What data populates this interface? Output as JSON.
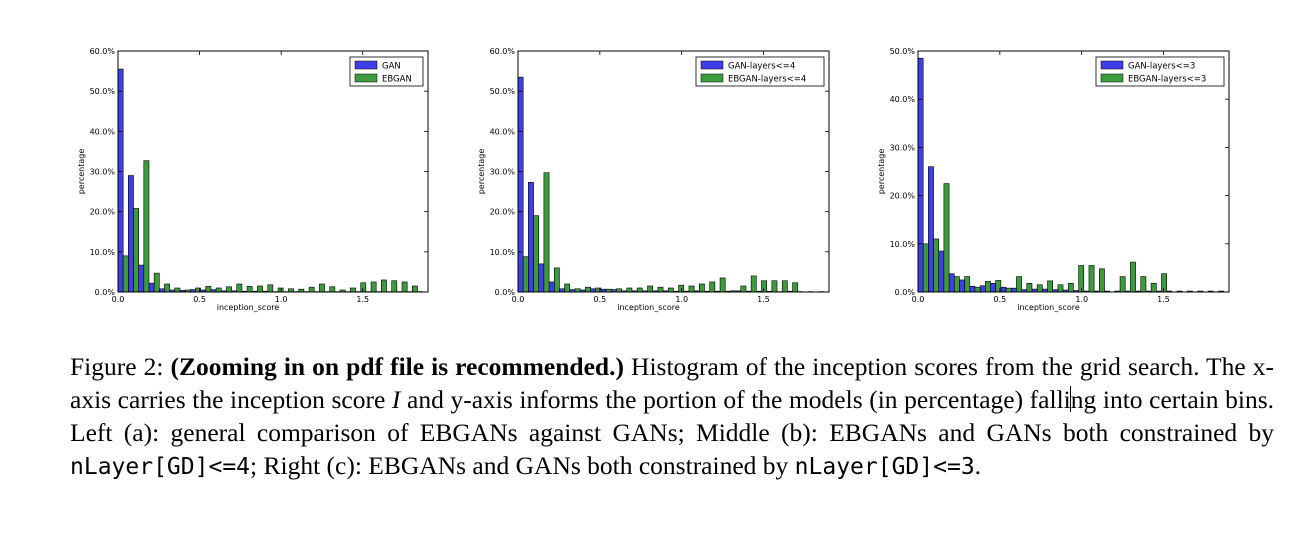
{
  "colors": {
    "gan": "#3f3fe8",
    "ebgan": "#3d9a3d"
  },
  "chart_data": [
    {
      "type": "bar",
      "xlabel": "inception_score",
      "ylabel": "percentage",
      "ylim": [
        0,
        60
      ],
      "xlim": [
        0,
        1.9
      ],
      "yticks": [
        "0.0%",
        "10.0%",
        "20.0%",
        "30.0%",
        "40.0%",
        "50.0%",
        "60.0%"
      ],
      "xticks": [
        "0.0",
        "0.5",
        "1.0",
        "1.5"
      ],
      "legend_position": "top-right",
      "bin_width": 0.0633,
      "series": [
        {
          "name": "GAN",
          "values": [
            55.5,
            29.0,
            6.7,
            2.2,
            0.8,
            0.5,
            0.4,
            0.6,
            0.5,
            0.6,
            0.3,
            0.3,
            0.2,
            0.2,
            0.2,
            0.1,
            0.1,
            0.1,
            0.1,
            0.1,
            0.1,
            0.1,
            0.1,
            0.1,
            0.1,
            0.1,
            0.1,
            0.1,
            0.1,
            0.1
          ]
        },
        {
          "name": "EBGAN",
          "values": [
            9.0,
            20.8,
            32.7,
            4.7,
            2.0,
            1.0,
            0.5,
            1.0,
            1.4,
            1.0,
            1.3,
            2.0,
            1.4,
            1.5,
            1.8,
            1.0,
            0.8,
            0.7,
            1.2,
            2.0,
            1.3,
            0.5,
            1.0,
            2.3,
            2.5,
            3.0,
            2.8,
            2.5,
            1.5,
            0.0
          ]
        }
      ]
    },
    {
      "type": "bar",
      "xlabel": "inception_score",
      "ylabel": "percentage",
      "ylim": [
        0,
        60
      ],
      "xlim": [
        0,
        1.9
      ],
      "yticks": [
        "0.0%",
        "10.0%",
        "20.0%",
        "30.0%",
        "40.0%",
        "50.0%",
        "60.0%"
      ],
      "xticks": [
        "0.0",
        "0.5",
        "1.0",
        "1.5"
      ],
      "legend_position": "top-right",
      "bin_width": 0.0633,
      "series": [
        {
          "name": "GAN-layers<=4",
          "values": [
            53.5,
            27.3,
            7.0,
            2.5,
            0.8,
            0.6,
            0.5,
            0.8,
            0.7,
            0.6,
            0.3,
            0.3,
            0.3,
            0.3,
            0.3,
            0.2,
            0.2,
            0.3,
            0.2,
            0.2,
            0.2,
            0.3,
            0.2,
            0.2,
            0.2,
            0.1,
            0.2,
            0.1,
            0.1,
            0.1
          ]
        },
        {
          "name": "EBGAN-layers<=4",
          "values": [
            8.8,
            19.0,
            29.7,
            6.0,
            2.0,
            0.8,
            1.2,
            1.0,
            0.7,
            0.8,
            1.0,
            1.0,
            1.5,
            1.2,
            1.0,
            1.7,
            1.5,
            2.0,
            2.5,
            3.5,
            0.3,
            1.5,
            4.0,
            2.8,
            2.8,
            2.8,
            2.3,
            0.0,
            0.0,
            0.0
          ]
        }
      ]
    },
    {
      "type": "bar",
      "xlabel": "inception_score",
      "ylabel": "percentage",
      "ylim": [
        0,
        50
      ],
      "xlim": [
        0,
        1.9
      ],
      "yticks": [
        "0.0%",
        "10.0%",
        "20.0%",
        "30.0%",
        "40.0%",
        "50.0%"
      ],
      "xticks": [
        "0.0",
        "0.5",
        "1.0",
        "1.5"
      ],
      "legend_position": "top-right",
      "bin_width": 0.0633,
      "series": [
        {
          "name": "GAN-layers<=3",
          "values": [
            48.5,
            26.0,
            8.5,
            3.8,
            2.5,
            1.2,
            1.3,
            1.8,
            1.0,
            0.8,
            0.5,
            0.6,
            0.6,
            0.5,
            0.4,
            0.3,
            0.2,
            0.2,
            0.2,
            0.2,
            0.2,
            0.2,
            0.2,
            0.2,
            0.2,
            0.2,
            0.2,
            0.2,
            0.2,
            0.2
          ]
        },
        {
          "name": "EBGAN-layers<=3",
          "values": [
            10.0,
            11.0,
            22.5,
            3.2,
            3.2,
            1.0,
            2.2,
            2.4,
            0.8,
            3.2,
            1.8,
            1.5,
            2.3,
            1.5,
            1.8,
            5.5,
            5.5,
            4.8,
            0.0,
            3.2,
            6.2,
            3.2,
            1.8,
            3.8,
            0.0,
            0.0,
            0.0,
            0.0,
            0.0,
            0.0
          ]
        }
      ]
    }
  ],
  "caption": {
    "prefix": "Figure 2:  ",
    "bold": "(Zooming in on pdf file is recommended.)",
    "t1": " Histogram of the inception scores from the grid search.  The x-axis carries the inception score ",
    "var": "I",
    "t2": " and y-axis informs the portion of the models (in percentage) falli",
    "t2b": "ng into certain bins.  Left (a):  general comparison of EBGANs against GANs; Middle (b): EBGANs and GANs both constrained by ",
    "code1": "nLayer[GD]<=4",
    "t3": "; Right (c): EBGANs and GANs both constrained by ",
    "code2": "nLayer[GD]<=3",
    "t4": "."
  }
}
